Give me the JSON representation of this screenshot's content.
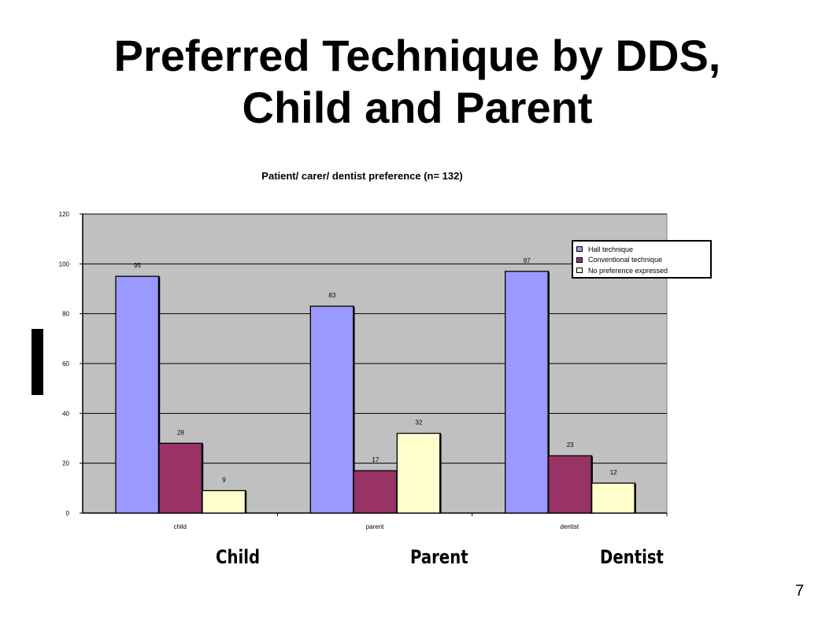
{
  "slide": {
    "title_line1": "Preferred Technique by DDS,",
    "title_line2": "Child and Parent",
    "category_labels": [
      "Child",
      "Parent",
      "Dentist"
    ],
    "page_number": "7"
  },
  "chart_data": {
    "type": "bar",
    "title": "Patient/ carer/ dentist preference (n= 132)",
    "categories": [
      "child",
      "parent",
      "dentist"
    ],
    "series": [
      {
        "name": "Hall technique",
        "values": [
          95,
          83,
          97
        ],
        "color": "#9999ff"
      },
      {
        "name": "Conventional technique",
        "values": [
          28,
          17,
          23
        ],
        "color": "#993366"
      },
      {
        "name": "No preference expressed",
        "values": [
          9,
          32,
          12
        ],
        "color": "#ffffcc"
      }
    ],
    "ylim": [
      0,
      120
    ],
    "yticks": [
      0,
      20,
      40,
      60,
      80,
      100,
      120
    ],
    "grid": true,
    "plot_background": "#c0c0c0",
    "legend_position": "top-right"
  }
}
